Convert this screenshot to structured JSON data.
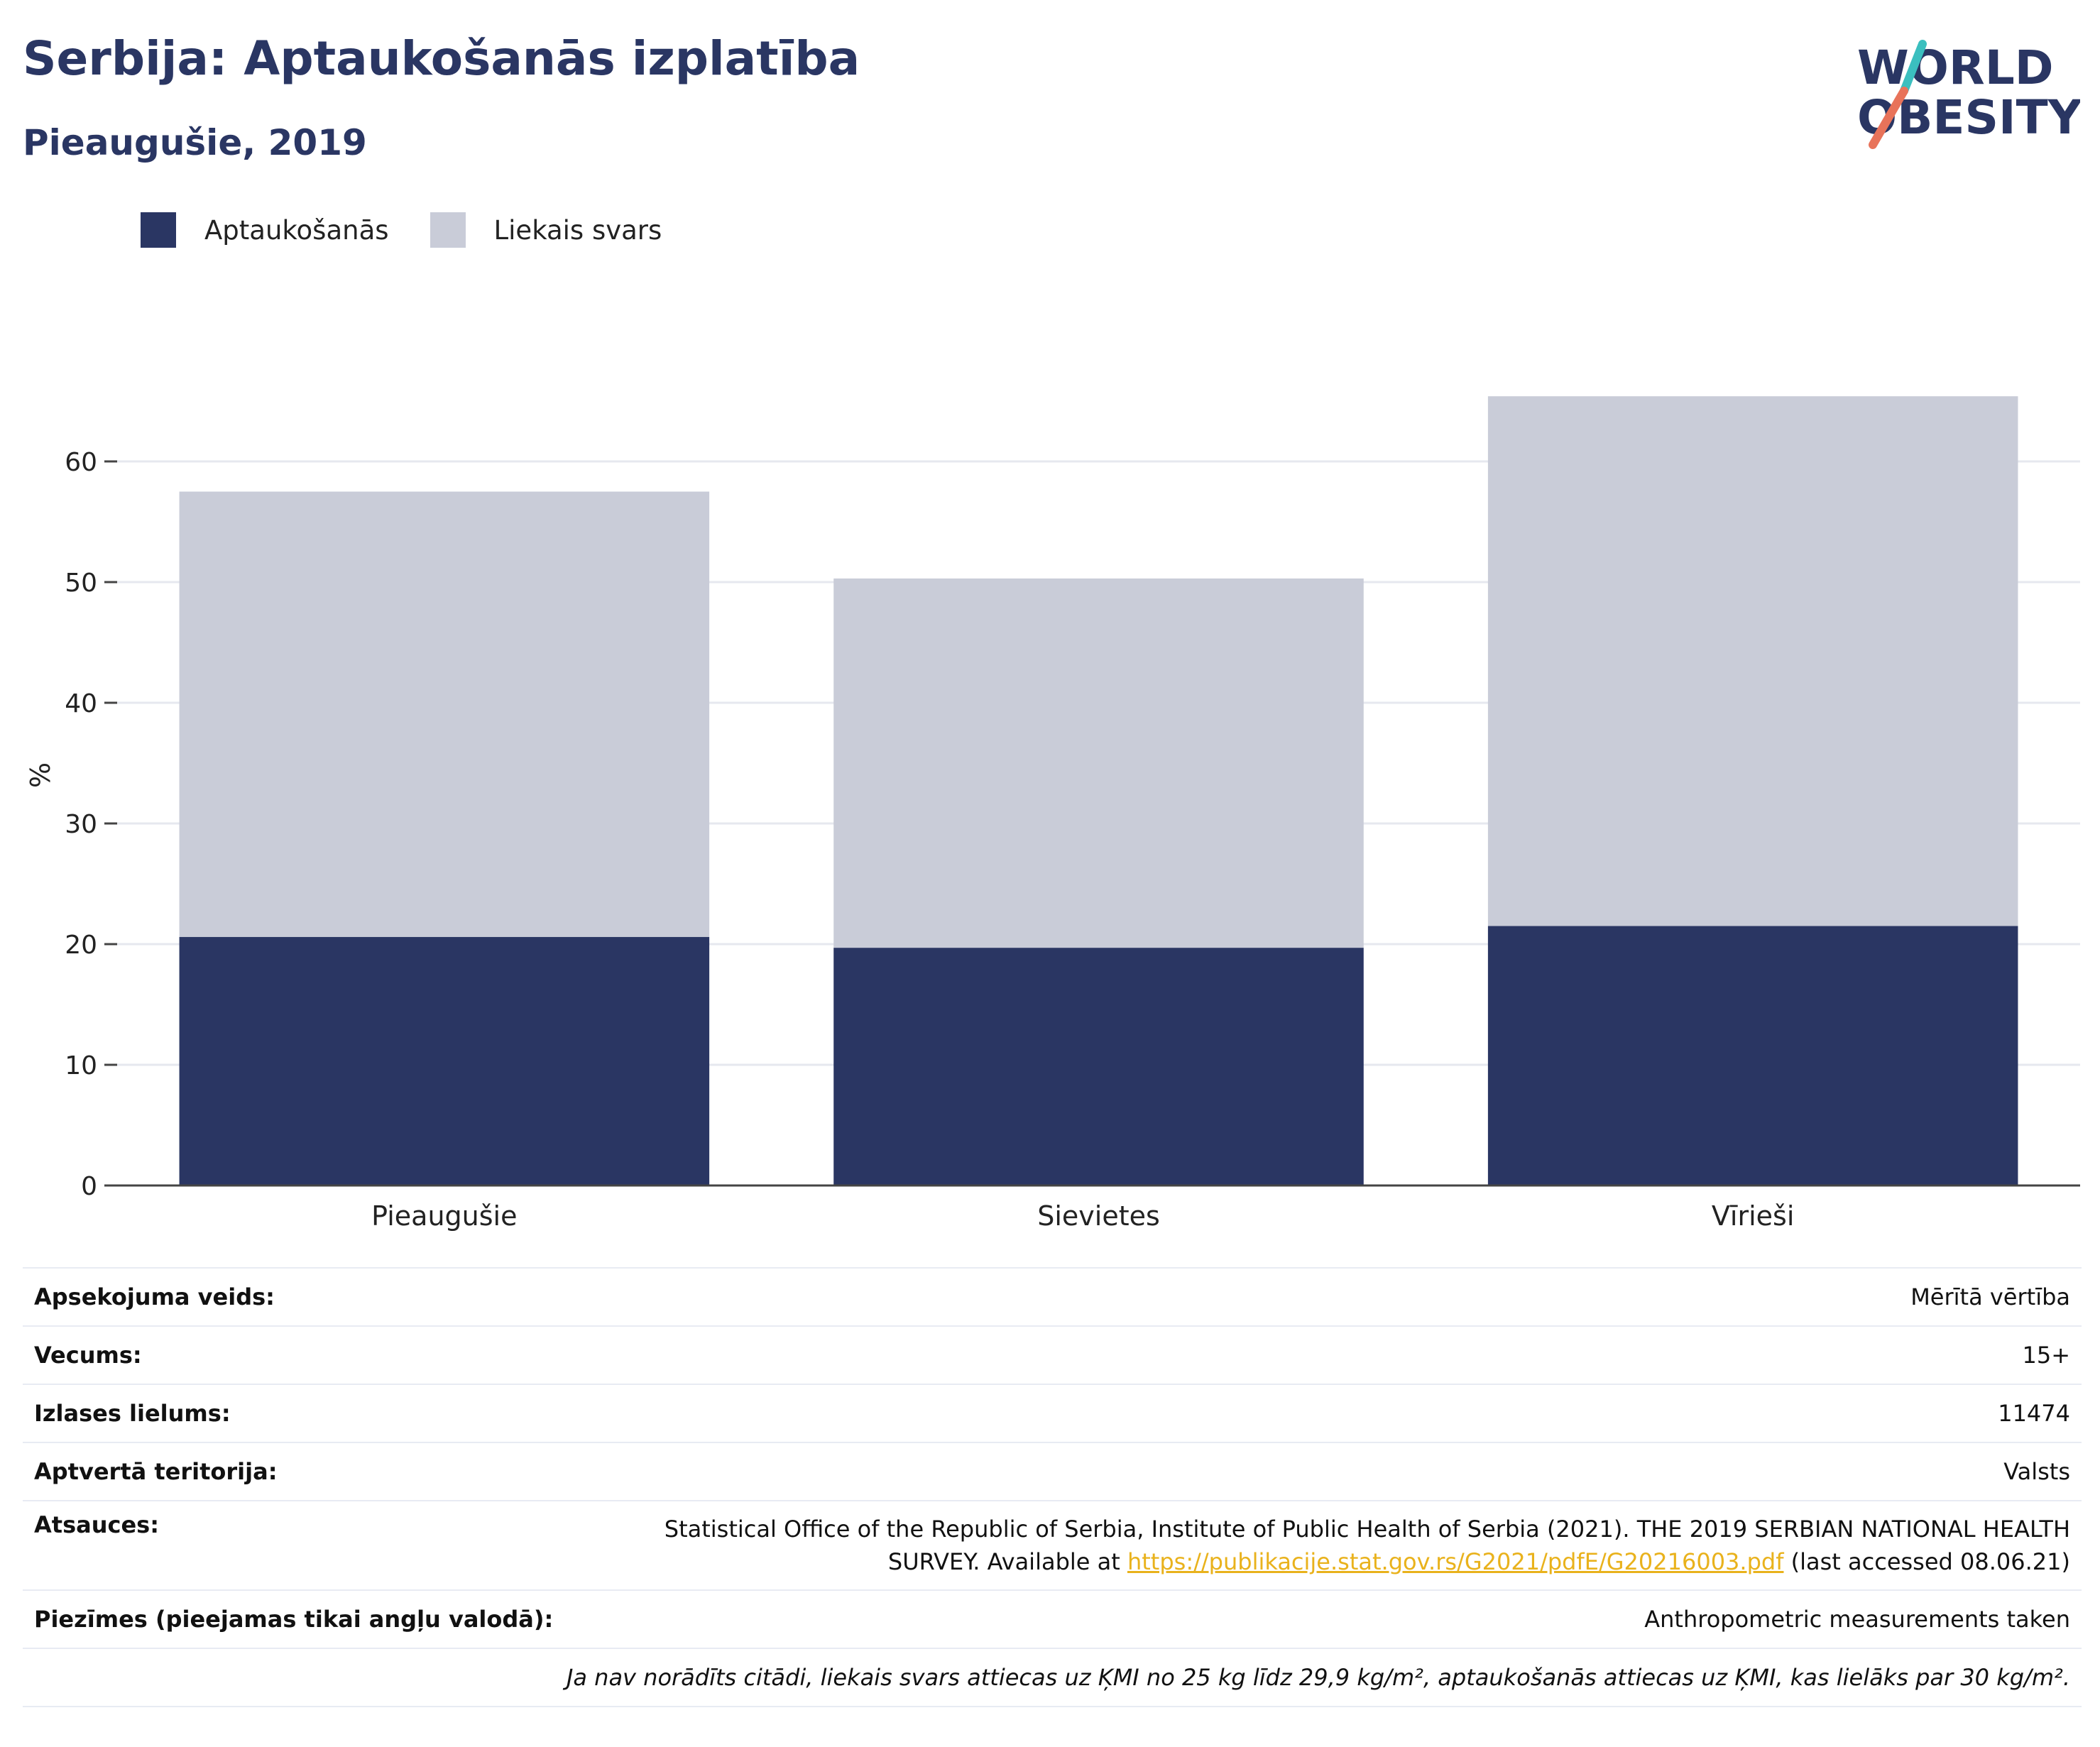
{
  "header": {
    "title": "Serbija: Aptaukošanās izplatība",
    "subtitle": "Pieaugušie, 2019"
  },
  "logo": {
    "line1": "WORLD",
    "line2": "OBESITY",
    "colors": {
      "text": "#2a3663",
      "slash_top": "#3bbfbf",
      "slash_bottom": "#e8735a"
    }
  },
  "legend": {
    "items": [
      {
        "label": "Aptaukošanās",
        "color": "#2a3663"
      },
      {
        "label": "Liekais svars",
        "color": "#c9ccd8"
      }
    ]
  },
  "chart_data": {
    "type": "bar",
    "stacked": true,
    "title": "Serbija: Aptaukošanās izplatība",
    "subtitle": "Pieaugušie, 2019",
    "xlabel": "",
    "ylabel": "%",
    "categories": [
      "Pieaugušie",
      "Sievietes",
      "Vīrieši"
    ],
    "series": [
      {
        "name": "Aptaukošanās",
        "color": "#2a3663",
        "values": [
          20.6,
          19.7,
          21.5
        ]
      },
      {
        "name": "Liekais svars",
        "color": "#c9ccd8",
        "values": [
          36.9,
          30.6,
          43.9
        ]
      }
    ],
    "ylim": [
      0,
      70
    ],
    "yticks": [
      0,
      10,
      20,
      30,
      40,
      50,
      60
    ],
    "grid": true,
    "legend_position": "top-left"
  },
  "meta": {
    "survey_type": {
      "label": "Apsekojuma veids:",
      "value": "Mērītā vērtība"
    },
    "age": {
      "label": "Vecums:",
      "value": "15+"
    },
    "sample_size": {
      "label": "Izlases lielums:",
      "value": "11474"
    },
    "area": {
      "label": "Aptvertā teritorija:",
      "value": "Valsts"
    },
    "references": {
      "label": "Atsauces:",
      "text_line1": "Statistical Office of the Republic of Serbia, Institute of Public Health of Serbia (2021). THE 2019 SERBIAN NATIONAL HEALTH",
      "text_line2_pre": "SURVEY. Available at ",
      "link": "https://publikacije.stat.gov.rs/G2021/pdfE/G20216003.pdf",
      "text_line2_post": " (last accessed 08.06.21)"
    },
    "notes": {
      "label": "Piezīmes (pieejamas tikai angļu valodā):",
      "value": "Anthropometric measurements taken"
    },
    "footnote": "Ja nav norādīts citādi, liekais svars attiecas uz ĶMI no 25 kg līdz 29,9 kg/m², aptaukošanās attiecas uz ĶMI, kas lielāks par 30 kg/m²."
  }
}
